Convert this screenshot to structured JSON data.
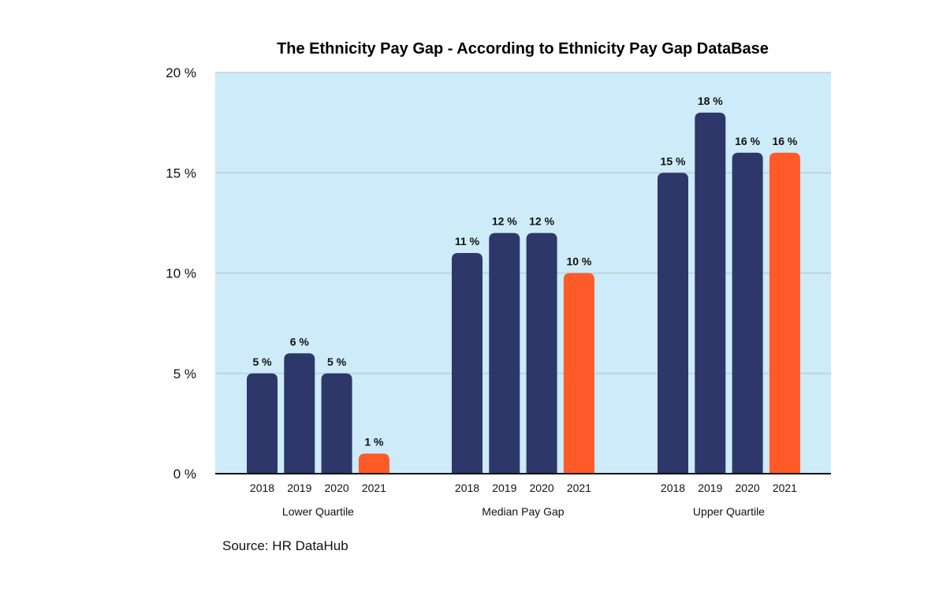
{
  "chart_data": {
    "type": "bar",
    "title": "The Ethnicity Pay Gap - According to Ethnicity Pay Gap DataBase",
    "groups": [
      "Lower Quartile",
      "Median Pay Gap",
      "Upper Quartile"
    ],
    "categories": [
      "2018",
      "2019",
      "2020",
      "2021"
    ],
    "values": [
      [
        5,
        6,
        5,
        1
      ],
      [
        11,
        12,
        12,
        10
      ],
      [
        15,
        18,
        16,
        16
      ]
    ],
    "data_labels": [
      [
        "5 %",
        "6 %",
        "5 %",
        "1 %"
      ],
      [
        "11 %",
        "12 %",
        "12 %",
        "10 %"
      ],
      [
        "15 %",
        "18 %",
        "16 %",
        "16 %"
      ]
    ],
    "ylim": [
      0,
      20
    ],
    "yticks": [
      0,
      5,
      10,
      15,
      20
    ],
    "ytick_labels": [
      "0 %",
      "5 %",
      "10 %",
      "15 %",
      "20 %"
    ],
    "xlabel": "",
    "ylabel": "",
    "grid": true,
    "legend": "none",
    "colors": {
      "default": "#2d376a",
      "highlight": "#ff5a28",
      "background": "#cdebf8",
      "grid": "#b9c8d2"
    },
    "highlight_category": "2021"
  },
  "source": "Source: HR DataHub"
}
